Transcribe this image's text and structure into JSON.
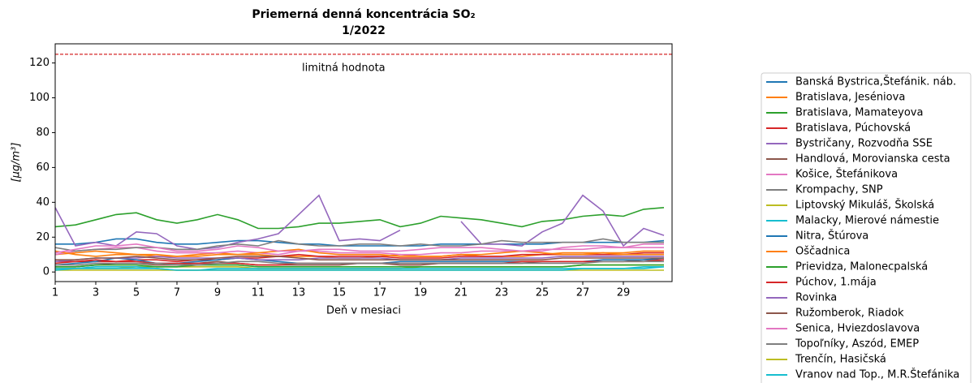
{
  "chart_data": {
    "type": "line",
    "title": "Priemerná denná koncentrácia SO₂",
    "subtitle": "1/2022",
    "x_label": "Deň v mesiaci",
    "y_label": "[μg/m³]",
    "annotation": "limitná hodnota",
    "limit_value": 125,
    "limit_color": "#d62728",
    "x": [
      1,
      2,
      3,
      4,
      5,
      6,
      7,
      8,
      9,
      10,
      11,
      12,
      13,
      14,
      15,
      16,
      17,
      18,
      19,
      20,
      21,
      22,
      23,
      24,
      25,
      26,
      27,
      28,
      29,
      30,
      31
    ],
    "xlim": [
      1,
      31.4
    ],
    "xticks": [
      1,
      3,
      5,
      7,
      9,
      11,
      13,
      15,
      17,
      19,
      21,
      23,
      25,
      27,
      29
    ],
    "ylim": [
      -5.5,
      131
    ],
    "yticks": [
      0,
      20,
      40,
      60,
      80,
      100,
      120
    ],
    "legend": "outside-right",
    "series": [
      {
        "name": "Banská Bystrica,Štefánik. náb.",
        "color": "#1f77b4",
        "values": [
          16,
          16,
          17,
          19,
          19,
          17,
          16,
          16,
          17,
          18,
          18,
          17,
          16,
          16,
          15,
          15,
          15,
          15,
          15,
          16,
          16,
          16,
          16,
          16,
          16,
          17,
          17,
          17,
          17,
          17,
          18
        ]
      },
      {
        "name": "Bratislava, Jeséniova",
        "color": "#ff7f0e",
        "values": [
          10,
          11,
          12,
          11,
          10,
          9,
          9,
          10,
          11,
          10,
          10,
          9,
          9,
          9,
          8,
          8,
          9,
          10,
          9,
          9,
          10,
          9,
          9,
          9,
          10,
          11,
          11,
          11,
          11,
          12,
          12
        ]
      },
      {
        "name": "Bratislava, Mamateyova",
        "color": "#2ca02c",
        "values": [
          26,
          27,
          30,
          33,
          34,
          30,
          28,
          30,
          33,
          30,
          25,
          25,
          26,
          28,
          28,
          29,
          30,
          26,
          28,
          32,
          31,
          30,
          28,
          26,
          29,
          30,
          32,
          33,
          32,
          36,
          37
        ]
      },
      {
        "name": "Bratislava, Púchovská",
        "color": "#d62728",
        "values": [
          5,
          6,
          6,
          6,
          7,
          7,
          6,
          7,
          7,
          8,
          8,
          9,
          10,
          9,
          9,
          9,
          9,
          8,
          8,
          8,
          9,
          9,
          9,
          10,
          10,
          10,
          10,
          10,
          10,
          11,
          11
        ]
      },
      {
        "name": "Bystričany, Rozvodňa SSE",
        "color": "#9467bd",
        "values": [
          37,
          15,
          17,
          15,
          23,
          22,
          15,
          13,
          14,
          17,
          19,
          22,
          33,
          44,
          18,
          19,
          18,
          24,
          null,
          null,
          29,
          16,
          16,
          15,
          23,
          28,
          44,
          35,
          15,
          25,
          21
        ]
      },
      {
        "name": "Handlová, Morovianska cesta",
        "color": "#8c564b",
        "values": [
          3,
          3,
          4,
          5,
          5,
          4,
          4,
          5,
          6,
          5,
          4,
          4,
          4,
          4,
          4,
          5,
          5,
          4,
          4,
          5,
          5,
          5,
          5,
          5,
          6,
          6,
          6,
          6,
          6,
          7,
          7
        ]
      },
      {
        "name": "Košice, Štefánikova",
        "color": "#e377c2",
        "values": [
          10,
          12,
          13,
          14,
          14,
          12,
          11,
          11,
          11,
          12,
          11,
          10,
          12,
          12,
          11,
          11,
          11,
          10,
          10,
          11,
          11,
          12,
          12,
          12,
          13,
          13,
          13,
          14,
          14,
          14,
          14
        ]
      },
      {
        "name": "Krompachy, SNP",
        "color": "#7f7f7f",
        "values": [
          14,
          12,
          13,
          13,
          14,
          14,
          13,
          13,
          15,
          16,
          15,
          18,
          16,
          15,
          15,
          16,
          16,
          15,
          16,
          15,
          15,
          16,
          18,
          17,
          17,
          17,
          17,
          19,
          17,
          17,
          17
        ]
      },
      {
        "name": "Liptovský Mikuláš, Školská",
        "color": "#bcbd22",
        "values": [
          2,
          2,
          2,
          2,
          3,
          3,
          3,
          3,
          3,
          3,
          2,
          2,
          2,
          2,
          2,
          2,
          2,
          2,
          3,
          3,
          3,
          3,
          3,
          3,
          3,
          3,
          4,
          4,
          4,
          4,
          4
        ]
      },
      {
        "name": "Malacky, Mierové námestie",
        "color": "#17becf",
        "values": [
          2,
          2,
          2,
          2,
          2,
          2,
          1,
          1,
          2,
          2,
          2,
          2,
          2,
          2,
          2,
          2,
          2,
          2,
          2,
          2,
          2,
          2,
          2,
          2,
          2,
          2,
          2,
          2,
          2,
          2,
          3
        ]
      },
      {
        "name": "Nitra, Štúrova",
        "color": "#1f77b4",
        "values": [
          4,
          5,
          6,
          8,
          7,
          5,
          5,
          6,
          7,
          8,
          7,
          6,
          5,
          5,
          5,
          5,
          5,
          6,
          6,
          6,
          6,
          6,
          6,
          6,
          6,
          6,
          6,
          7,
          7,
          7,
          8
        ]
      },
      {
        "name": "Oščadnica",
        "color": "#ff7f0e",
        "values": [
          12,
          10,
          9,
          10,
          10,
          10,
          9,
          9,
          10,
          10,
          11,
          12,
          13,
          11,
          10,
          10,
          10,
          9,
          9,
          9,
          10,
          10,
          11,
          12,
          11,
          10,
          10,
          11,
          10,
          10,
          10
        ]
      },
      {
        "name": "Prievidza, Malonecpalská",
        "color": "#2ca02c",
        "values": [
          3,
          3,
          4,
          4,
          4,
          3,
          3,
          4,
          4,
          4,
          3,
          3,
          3,
          3,
          3,
          3,
          3,
          3,
          3,
          3,
          3,
          3,
          3,
          3,
          3,
          3,
          4,
          4,
          4,
          4,
          4
        ]
      },
      {
        "name": "Púchov, 1.mája",
        "color": "#d62728",
        "values": [
          6,
          6,
          7,
          6,
          6,
          5,
          5,
          5,
          5,
          5,
          4,
          4,
          5,
          5,
          5,
          5,
          5,
          5,
          5,
          5,
          5,
          5,
          5,
          6,
          6,
          6,
          6,
          6,
          6,
          6,
          7
        ]
      },
      {
        "name": "Rovinka",
        "color": "#9467bd",
        "values": [
          6,
          7,
          8,
          8,
          8,
          9,
          8,
          8,
          8,
          8,
          7,
          7,
          7,
          8,
          8,
          8,
          8,
          7,
          7,
          7,
          8,
          8,
          8,
          8,
          8,
          9,
          9,
          9,
          9,
          9,
          9
        ]
      },
      {
        "name": "Ružomberok, Riadok",
        "color": "#8c564b",
        "values": [
          7,
          7,
          8,
          8,
          9,
          8,
          7,
          7,
          8,
          9,
          9,
          9,
          8,
          7,
          7,
          7,
          7,
          7,
          7,
          7,
          7,
          7,
          7,
          7,
          7,
          8,
          8,
          8,
          8,
          8,
          8
        ]
      },
      {
        "name": "Senica, Hviezdoslavova",
        "color": "#e377c2",
        "values": [
          11,
          13,
          15,
          15,
          16,
          14,
          12,
          12,
          13,
          15,
          14,
          12,
          12,
          13,
          13,
          12,
          12,
          12,
          13,
          14,
          14,
          14,
          13,
          12,
          12,
          14,
          15,
          15,
          14,
          16,
          16
        ]
      },
      {
        "name": "Topoľníky, Aszód, EMEP",
        "color": "#7f7f7f",
        "values": [
          4,
          4,
          5,
          5,
          5,
          5,
          4,
          4,
          5,
          6,
          6,
          5,
          5,
          5,
          5,
          5,
          5,
          5,
          5,
          5,
          5,
          5,
          5,
          5,
          5,
          5,
          5,
          6,
          6,
          6,
          6
        ]
      },
      {
        "name": "Trenčín, Hasičská",
        "color": "#bcbd22",
        "values": [
          1,
          1,
          1,
          1,
          1,
          1,
          1,
          1,
          1,
          1,
          1,
          1,
          1,
          1,
          1,
          1,
          1,
          1,
          1,
          1,
          1,
          1,
          1,
          1,
          1,
          1,
          1,
          1,
          1,
          1,
          1
        ]
      },
      {
        "name": "Vranov nad Top., M.R.Štefánika",
        "color": "#17becf",
        "values": [
          1,
          2,
          3,
          3,
          3,
          2,
          1,
          1,
          1,
          1,
          1,
          1,
          1,
          1,
          1,
          1,
          1,
          1,
          1,
          1,
          1,
          1,
          1,
          1,
          1,
          1,
          2,
          2,
          2,
          3,
          3
        ]
      }
    ]
  }
}
